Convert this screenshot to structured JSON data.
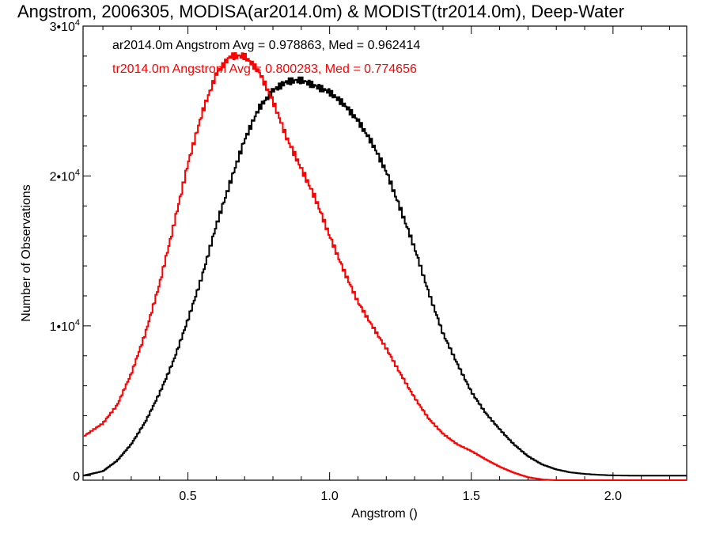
{
  "chart_data": {
    "type": "line",
    "title": "Angstrom, 2006305, MODISA(ar2014.0m) & MODIST(tr2014.0m), Deep-Water",
    "xlabel": "Angstrom ()",
    "ylabel": "Number of Observations",
    "xlim": [
      0.13,
      2.26
    ],
    "ylim": [
      -300,
      30000
    ],
    "x_ticks": [
      0.5,
      1.0,
      1.5,
      2.0
    ],
    "x_tick_labels": [
      "0.5",
      "1.0",
      "1.5",
      "2.0"
    ],
    "y_ticks": [
      {
        "value": 0,
        "mantissa": "0",
        "exponent": ""
      },
      {
        "value": 10000,
        "mantissa": "1•10",
        "exponent": "4"
      },
      {
        "value": 20000,
        "mantissa": "2•10",
        "exponent": "4"
      },
      {
        "value": 30000,
        "mantissa": "3•10",
        "exponent": "4"
      }
    ],
    "grid": false,
    "line_style": "histogram-steps",
    "annotations": [
      {
        "text": "ar2014.0m Angstrom Avg = 0.978863, Med = 0.962414",
        "color": "#000000"
      },
      {
        "text": "tr2014.0m Angstrom Avg = 0.800283, Med = 0.774656",
        "color": "#ff0000"
      }
    ],
    "series": [
      {
        "color": "#000000",
        "x": [
          0.13,
          0.2,
          0.25,
          0.3,
          0.35,
          0.4,
          0.45,
          0.5,
          0.55,
          0.6,
          0.65,
          0.7,
          0.75,
          0.8,
          0.85,
          0.9,
          0.95,
          1.0,
          1.05,
          1.1,
          1.15,
          1.2,
          1.25,
          1.3,
          1.35,
          1.4,
          1.45,
          1.5,
          1.55,
          1.6,
          1.65,
          1.7,
          1.75,
          1.8,
          1.85,
          1.9,
          1.95,
          2.0,
          2.05,
          2.1,
          2.15,
          2.2,
          2.26
        ],
        "y": [
          0,
          300,
          1000,
          2100,
          3600,
          5500,
          7700,
          10400,
          13300,
          16700,
          19600,
          22400,
          24500,
          25700,
          26300,
          26400,
          26000,
          25600,
          24800,
          23700,
          22200,
          20300,
          17800,
          15200,
          12200,
          9500,
          7500,
          5600,
          4200,
          3100,
          2100,
          1300,
          750,
          420,
          220,
          120,
          60,
          20,
          10,
          0,
          0,
          0,
          0
        ]
      },
      {
        "color": "#ff0000",
        "x": [
          0.13,
          0.2,
          0.25,
          0.3,
          0.35,
          0.4,
          0.45,
          0.5,
          0.55,
          0.6,
          0.65,
          0.7,
          0.75,
          0.8,
          0.85,
          0.9,
          0.95,
          1.0,
          1.05,
          1.1,
          1.15,
          1.2,
          1.25,
          1.3,
          1.35,
          1.4,
          1.45,
          1.5,
          1.55,
          1.6,
          1.65,
          1.7,
          1.75,
          1.8,
          1.85,
          1.9,
          1.95,
          2.0,
          2.05,
          2.1,
          2.15,
          2.2,
          2.26
        ],
        "y": [
          2600,
          3500,
          4700,
          6800,
          9500,
          12800,
          16700,
          20800,
          24200,
          26800,
          28000,
          28000,
          27000,
          25000,
          22500,
          20500,
          18500,
          16000,
          13700,
          11600,
          10000,
          8500,
          6800,
          5200,
          3800,
          2800,
          2100,
          1650,
          1100,
          600,
          200,
          -100,
          -250,
          -300,
          -300,
          -300,
          -300,
          -300,
          -300,
          -300,
          -300,
          -300,
          -300
        ]
      }
    ]
  }
}
